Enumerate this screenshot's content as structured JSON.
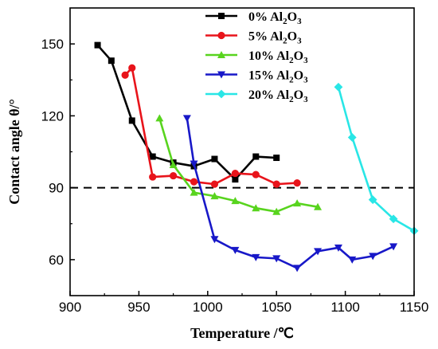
{
  "chart_data": {
    "type": "line",
    "title": "",
    "xlabel": "Temperature /℃",
    "ylabel": "Contact angle θ/°",
    "xlim": [
      900,
      1150
    ],
    "ylim": [
      45,
      165
    ],
    "xticks": [
      900,
      950,
      1000,
      1050,
      1100,
      1150
    ],
    "yticks": [
      60,
      90,
      120,
      150
    ],
    "reference_line": {
      "y": 90,
      "style": "dashed"
    },
    "legend_position": "top-right",
    "series": [
      {
        "name": "0%  Al2O3",
        "color": "#000000",
        "marker": "square",
        "x": [
          920,
          930,
          945,
          960,
          975,
          990,
          1005,
          1020,
          1035,
          1050
        ],
        "y": [
          149.5,
          143,
          118,
          103,
          100.5,
          99,
          102,
          93.5,
          103,
          102.5
        ]
      },
      {
        "name": "5%  Al2O3",
        "color": "#e8141b",
        "marker": "circle",
        "x": [
          940,
          945,
          960,
          975,
          990,
          1005,
          1020,
          1035,
          1050,
          1065
        ],
        "y": [
          137,
          140,
          94.5,
          95,
          92.5,
          91.5,
          96,
          95.5,
          91.5,
          92
        ]
      },
      {
        "name": "10%  Al2O3",
        "color": "#58d41e",
        "marker": "triangle-up",
        "x": [
          965,
          975,
          990,
          1005,
          1020,
          1035,
          1050,
          1065,
          1080
        ],
        "y": [
          119,
          99.5,
          88,
          86.5,
          84.5,
          81.5,
          80,
          83.5,
          82
        ]
      },
      {
        "name": "15%  Al2O3",
        "color": "#1818c8",
        "marker": "triangle-down",
        "x": [
          985,
          990,
          1005,
          1020,
          1035,
          1050,
          1065,
          1080,
          1095,
          1105,
          1120,
          1135
        ],
        "y": [
          119,
          100,
          68.5,
          64,
          61,
          60.5,
          56.5,
          63.5,
          65,
          60,
          61.5,
          65.5
        ]
      },
      {
        "name": "20%  Al2O3",
        "color": "#29e6e6",
        "marker": "diamond",
        "x": [
          1095,
          1105,
          1120,
          1135,
          1150
        ],
        "y": [
          132,
          111,
          85,
          77,
          72
        ]
      }
    ],
    "legend": {
      "entries": [
        {
          "pre": "0%  Al",
          "sub1": "2",
          "mid": "O",
          "sub2": "3"
        },
        {
          "pre": "5%  Al",
          "sub1": "2",
          "mid": "O",
          "sub2": "3"
        },
        {
          "pre": "10%  Al",
          "sub1": "2",
          "mid": "O",
          "sub2": "3"
        },
        {
          "pre": "15%  Al",
          "sub1": "2",
          "mid": "O",
          "sub2": "3"
        },
        {
          "pre": "20%  Al",
          "sub1": "2",
          "mid": "O",
          "sub2": "3"
        }
      ]
    }
  }
}
